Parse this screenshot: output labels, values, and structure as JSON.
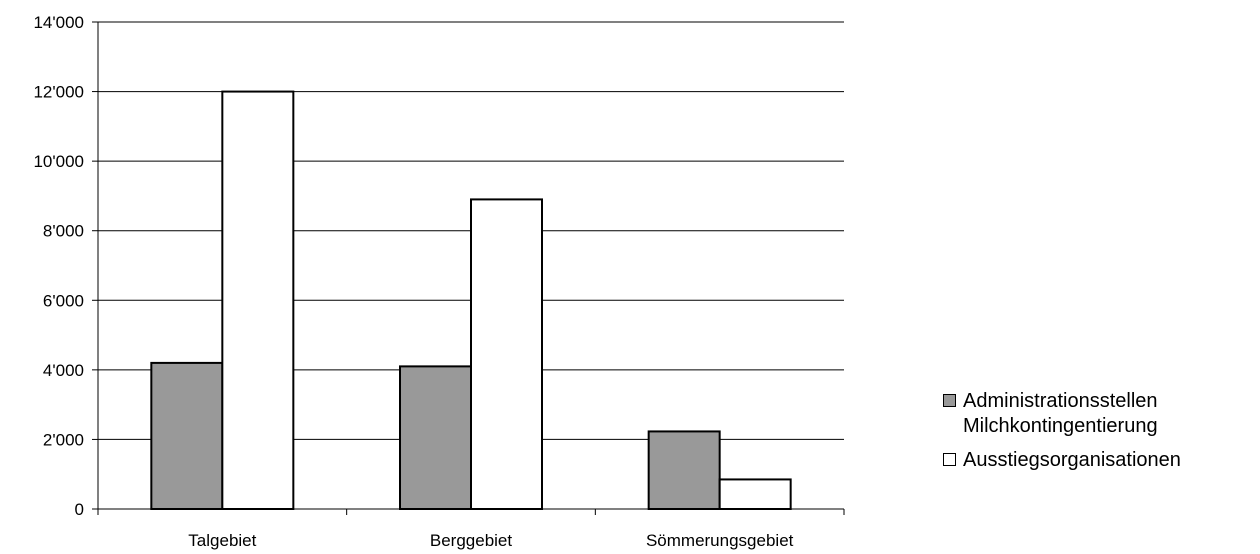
{
  "chart_data": {
    "type": "bar",
    "categories": [
      "Talgebiet",
      "Berggebiet",
      "Sömmerungsgebiet"
    ],
    "series": [
      {
        "name": "Administrationsstellen Milchkontingentierung",
        "values": [
          4200,
          4100,
          2230
        ],
        "color": "#999999"
      },
      {
        "name": "Ausstiegsorganisationen",
        "values": [
          12000,
          8900,
          850
        ],
        "color": "#ffffff"
      }
    ],
    "ylim": [
      0,
      14000
    ],
    "yticks": [
      0,
      2000,
      4000,
      6000,
      8000,
      10000,
      12000,
      14000
    ],
    "ytick_labels": [
      "0",
      "2'000",
      "4'000",
      "6'000",
      "8'000",
      "10'000",
      "12'000",
      "14'000"
    ],
    "grid": true,
    "legend_position": "right"
  }
}
